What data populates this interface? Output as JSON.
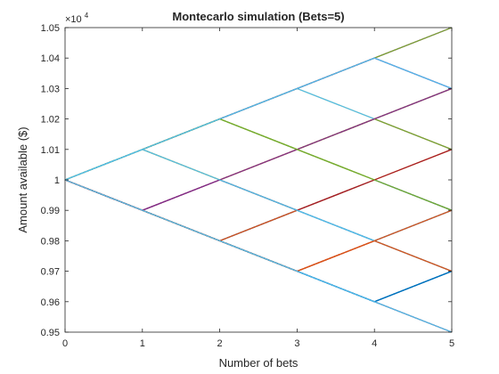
{
  "chart_data": {
    "type": "line",
    "title": "Montecarlo simulation (Bets=5)",
    "xlabel": "Number of bets",
    "ylabel": "Amount available ($)",
    "exponent_label": "×10",
    "exponent_power": "4",
    "xlim": [
      0,
      5
    ],
    "ylim": [
      9500,
      10500
    ],
    "x_ticks": [
      0,
      1,
      2,
      3,
      4,
      5
    ],
    "x_tick_labels": [
      "0",
      "1",
      "2",
      "3",
      "4",
      "5"
    ],
    "y_ticks": [
      9500,
      9600,
      9700,
      9800,
      9900,
      10000,
      10100,
      10200,
      10300,
      10400,
      10500
    ],
    "y_tick_labels": [
      "0.95",
      "0.96",
      "0.97",
      "0.98",
      "0.99",
      "1",
      "1.01",
      "1.02",
      "1.03",
      "1.04",
      "1.05"
    ],
    "grid": false,
    "box": true,
    "x": [
      0,
      1,
      2,
      3,
      4,
      5
    ],
    "series": [
      {
        "color": "#0072BD",
        "values": [
          10000,
          9900,
          9800,
          9700,
          9600,
          9700
        ]
      },
      {
        "color": "#D95319",
        "values": [
          10000,
          9900,
          9800,
          9900,
          10000,
          10100
        ]
      },
      {
        "color": "#EDB120",
        "values": [
          10000,
          10100,
          10000,
          10100,
          10200,
          10300
        ]
      },
      {
        "color": "#7E2F8E",
        "values": [
          10000,
          9900,
          10000,
          9900,
          10000,
          9900
        ]
      },
      {
        "color": "#77AC30",
        "values": [
          10000,
          10100,
          10200,
          10100,
          10000,
          9900
        ]
      },
      {
        "color": "#4DBEEE",
        "values": [
          10000,
          9900,
          9800,
          9900,
          9800,
          9900
        ]
      },
      {
        "color": "#A2142F",
        "values": [
          10000,
          10100,
          10200,
          10300,
          10400,
          10500
        ]
      },
      {
        "color": "#0072BD",
        "values": [
          10000,
          9900,
          9800,
          9700,
          9600,
          9500
        ]
      },
      {
        "color": "#D95319",
        "values": [
          10000,
          9900,
          9800,
          9700,
          9800,
          9700
        ]
      },
      {
        "color": "#EDB120",
        "values": [
          10000,
          10100,
          10000,
          10100,
          10200,
          10300
        ]
      },
      {
        "color": "#7E2F8E",
        "values": [
          10000,
          10100,
          10200,
          10300,
          10400,
          10300
        ]
      },
      {
        "color": "#77AC30",
        "values": [
          10000,
          10100,
          10200,
          10100,
          10000,
          9900
        ]
      },
      {
        "color": "#4DBEEE",
        "values": [
          10000,
          10100,
          10000,
          9900,
          9800,
          9700
        ]
      },
      {
        "color": "#A2142F",
        "values": [
          10000,
          9900,
          10000,
          10100,
          10200,
          10300
        ]
      },
      {
        "color": "#0072BD",
        "values": [
          10000,
          9900,
          9800,
          9700,
          9600,
          9700
        ]
      },
      {
        "color": "#D95319",
        "values": [
          10000,
          9900,
          9800,
          9700,
          9800,
          9700
        ]
      },
      {
        "color": "#EDB120",
        "values": [
          10000,
          10100,
          10000,
          10100,
          10200,
          10300
        ]
      },
      {
        "color": "#7E2F8E",
        "values": [
          10000,
          10100,
          10200,
          10300,
          10400,
          10500
        ]
      },
      {
        "color": "#77AC30",
        "values": [
          10000,
          10100,
          10200,
          10100,
          10000,
          9900
        ]
      },
      {
        "color": "#4DBEEE",
        "values": [
          10000,
          10100,
          10000,
          9900,
          9800,
          9700
        ]
      },
      {
        "color": "#A2142F",
        "values": [
          10000,
          9900,
          9800,
          9700,
          9800,
          9900
        ]
      },
      {
        "color": "#0072BD",
        "values": [
          10000,
          9900,
          9800,
          9700,
          9600,
          9700
        ]
      },
      {
        "color": "#D95319",
        "values": [
          10000,
          9900,
          9800,
          9900,
          10000,
          10100
        ]
      },
      {
        "color": "#EDB120",
        "values": [
          10000,
          10100,
          10200,
          10300,
          10200,
          10100
        ]
      },
      {
        "color": "#7E2F8E",
        "values": [
          10000,
          9900,
          10000,
          10100,
          10200,
          10100
        ]
      },
      {
        "color": "#77AC30",
        "values": [
          10000,
          10100,
          10200,
          10100,
          10200,
          10300
        ]
      },
      {
        "color": "#4DBEEE",
        "values": [
          10000,
          10100,
          10200,
          10300,
          10200,
          10300
        ]
      },
      {
        "color": "#A2142F",
        "values": [
          10000,
          9900,
          9800,
          9900,
          9800,
          9900
        ]
      },
      {
        "color": "#0072BD",
        "values": [
          10000,
          9900,
          9800,
          9900,
          10000,
          9900
        ]
      },
      {
        "color": "#D95319",
        "values": [
          10000,
          9900,
          9800,
          9700,
          9800,
          9900
        ]
      },
      {
        "color": "#EDB120",
        "values": [
          10000,
          10100,
          10000,
          9900,
          10000,
          10100
        ]
      },
      {
        "color": "#7E2F8E",
        "values": [
          10000,
          9900,
          10000,
          10100,
          10200,
          10300
        ]
      },
      {
        "color": "#77AC30",
        "values": [
          10000,
          10100,
          10200,
          10300,
          10400,
          10500
        ]
      },
      {
        "color": "#4DBEEE",
        "values": [
          10000,
          10100,
          10000,
          9900,
          9800,
          9900
        ]
      },
      {
        "color": "#A2142F",
        "values": [
          10000,
          9900,
          9800,
          9700,
          9600,
          9500
        ]
      },
      {
        "color": "#0072BD",
        "values": [
          10000,
          9900,
          9800,
          9700,
          9600,
          9700
        ]
      },
      {
        "color": "#D95319",
        "values": [
          10000,
          9900,
          9800,
          9900,
          9800,
          9700
        ]
      },
      {
        "color": "#EDB120",
        "values": [
          10000,
          10100,
          10000,
          9900,
          10000,
          10100
        ]
      },
      {
        "color": "#7E2F8E",
        "values": [
          10000,
          10100,
          10200,
          10300,
          10400,
          10300
        ]
      },
      {
        "color": "#77AC30",
        "values": [
          10000,
          10100,
          10200,
          10100,
          10200,
          10100
        ]
      },
      {
        "color": "#4DBEEE",
        "values": [
          10000,
          10100,
          10000,
          9900,
          9800,
          9700
        ]
      },
      {
        "color": "#A2142F",
        "values": [
          10000,
          9900,
          10000,
          9900,
          10000,
          10100
        ]
      },
      {
        "color": "#0072BD",
        "values": [
          10000,
          9900,
          9800,
          9700,
          9600,
          9700
        ]
      },
      {
        "color": "#D95319",
        "values": [
          10000,
          9900,
          9800,
          9700,
          9800,
          9700
        ]
      },
      {
        "color": "#EDB120",
        "values": [
          10000,
          10100,
          10000,
          10100,
          10200,
          10300
        ]
      },
      {
        "color": "#7E2F8E",
        "values": [
          10000,
          9900,
          10000,
          10100,
          10200,
          10300
        ]
      },
      {
        "color": "#77AC30",
        "values": [
          10000,
          10100,
          10200,
          10100,
          10000,
          9900
        ]
      },
      {
        "color": "#4DBEEE",
        "values": [
          10000,
          10100,
          10000,
          9900,
          9800,
          9900
        ]
      },
      {
        "color": "#D95319",
        "values": [
          10000,
          9900,
          9800,
          9700,
          9800,
          9900
        ]
      },
      {
        "color": "#4DBEEE",
        "values": [
          10000,
          9900,
          9800,
          9700,
          9600,
          9500
        ]
      },
      {
        "color": "#4DBEEE",
        "values": [
          10000,
          10100,
          10200,
          10300,
          10400,
          10300
        ]
      }
    ]
  }
}
